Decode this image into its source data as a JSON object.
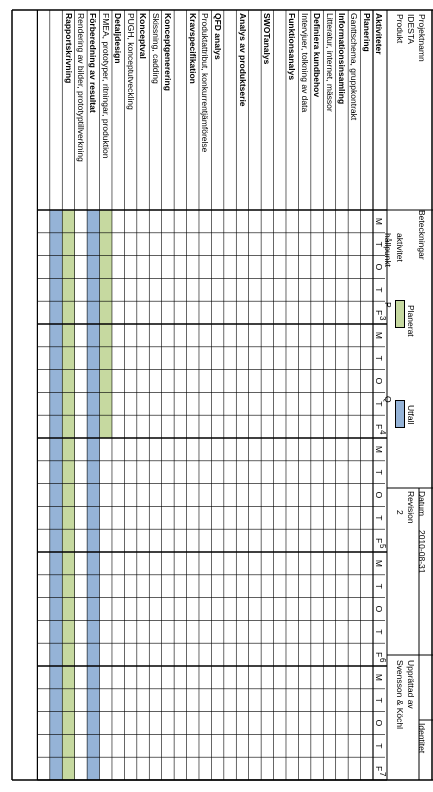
{
  "header": {
    "project_label": "Projektnamn",
    "project_name": "IDESTA",
    "product_label": "Produkt",
    "legend_label": "Beteckningar",
    "activity_label": "aktivitet",
    "milestone_label": "hållpunkt",
    "milestone_symbol": "P",
    "outcome_symbol": "Q",
    "planned_label": "Planerat",
    "outcome_label": "Utfall",
    "date_label": "Datum",
    "date_value": "2010-08-31",
    "revision_label": "Revision",
    "revision_value": "2",
    "ident_label": "Identitet",
    "prepared_label": "Upprättad av",
    "prepared_value": "Svensson & Köchl"
  },
  "colors": {
    "planned": "#c6d9a0",
    "outcome": "#95b3d7",
    "grid": "#000000"
  },
  "weeks": [
    "3",
    "4",
    "5",
    "6",
    "7"
  ],
  "day_labels": [
    "M",
    "T",
    "O",
    "T",
    "F"
  ],
  "rows": [
    {
      "label": "Aktiviteter",
      "bold": true
    },
    {
      "label": "Planering",
      "bold": true
    },
    {
      "label": "Ganttschema, gruppkontrakt",
      "bold": false
    },
    {
      "label": "Informationsinsamling",
      "bold": true
    },
    {
      "label": "Litteratur, internet, mässor",
      "bold": false
    },
    {
      "label": "Definiera kundbehov",
      "bold": true
    },
    {
      "label": "Intervjuer, tolkning av data",
      "bold": false
    },
    {
      "label": "Funktionsanalys",
      "bold": true
    },
    {
      "label": "",
      "bold": false
    },
    {
      "label": "SWOTanalys",
      "bold": true
    },
    {
      "label": "",
      "bold": false
    },
    {
      "label": "Analys av produktserie",
      "bold": true
    },
    {
      "label": "",
      "bold": false
    },
    {
      "label": "QFD analys",
      "bold": true
    },
    {
      "label": "Produktattribut, konkurrentjämförelse",
      "bold": false
    },
    {
      "label": "Kravspecifikation",
      "bold": true
    },
    {
      "label": "",
      "bold": false
    },
    {
      "label": "Konceptgenerering",
      "bold": true
    },
    {
      "label": "Skissning, cadding",
      "bold": false
    },
    {
      "label": "Konceptval",
      "bold": true
    },
    {
      "label": "PUGH, konceptutveckling",
      "bold": false
    },
    {
      "label": "Detaljdesign",
      "bold": true
    },
    {
      "label": "FMEA, prototyper, ritningar, produktion",
      "bold": false
    },
    {
      "label": "Förberedning av resultat",
      "bold": true
    },
    {
      "label": "Rendering av bilder, prototyptillverkning",
      "bold": false
    },
    {
      "label": "Rapportskrivning",
      "bold": true
    }
  ],
  "bars": [
    {
      "row": 22,
      "type": "planned",
      "start_day": 0,
      "end_day": 10
    },
    {
      "row": 23,
      "type": "outcome",
      "start_day": 0,
      "end_day": 25
    },
    {
      "row": 25,
      "type": "planned",
      "start_day": 0,
      "end_day": 25
    },
    {
      "row": 26,
      "type": "outcome",
      "start_day": 0,
      "end_day": 25
    }
  ]
}
